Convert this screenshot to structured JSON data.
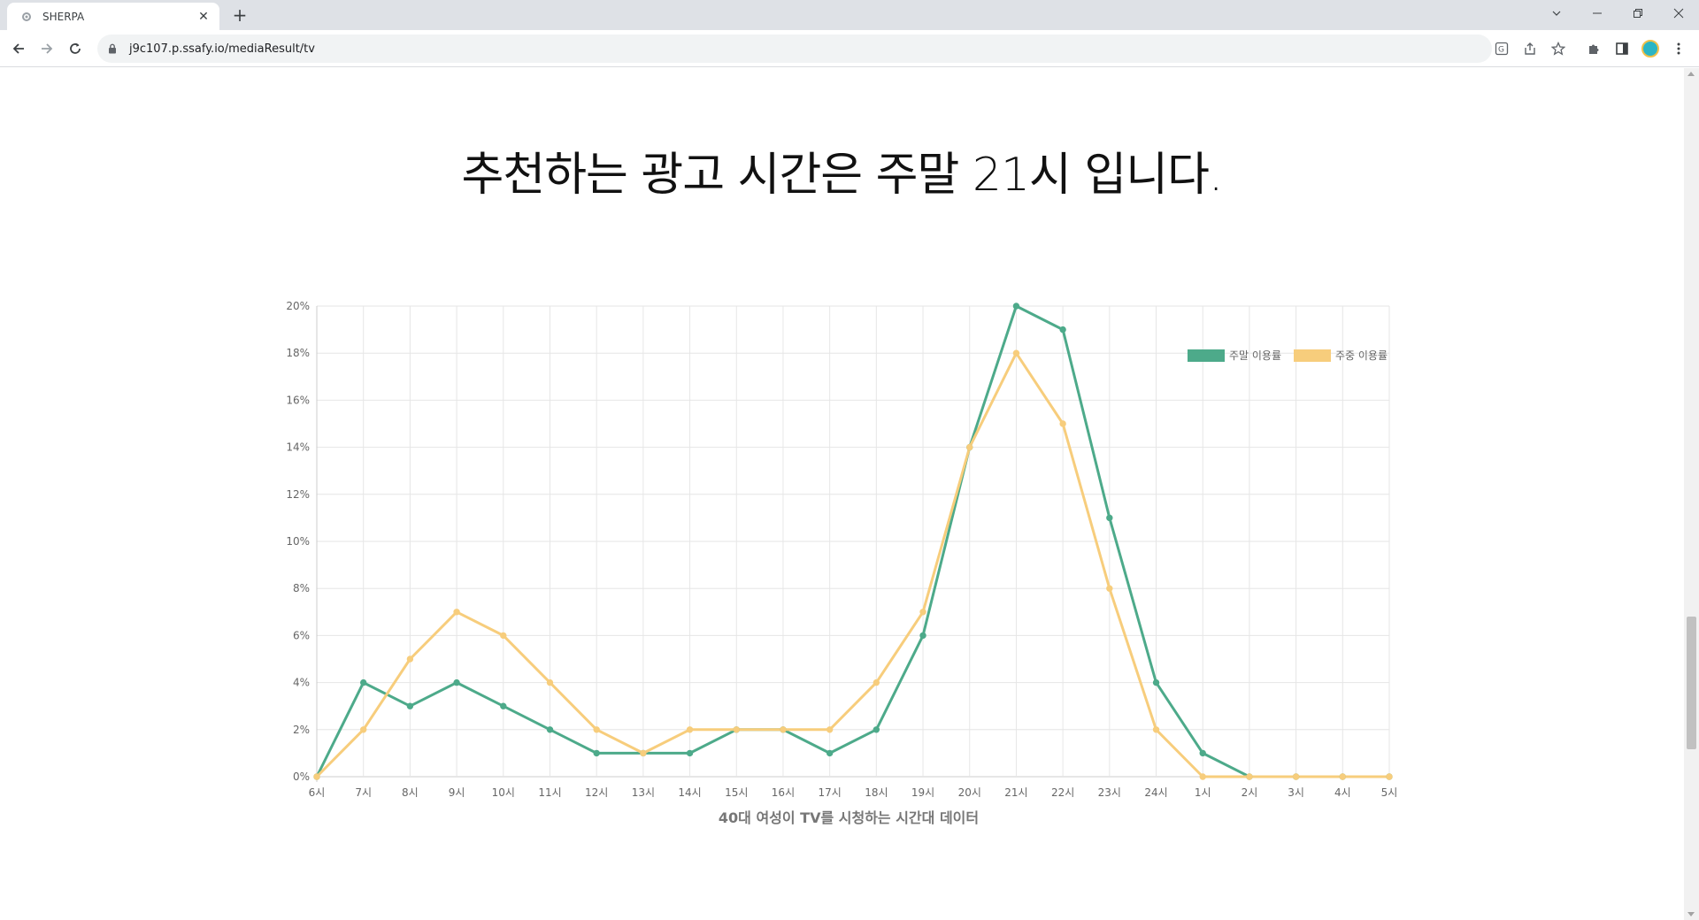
{
  "browser": {
    "tab_title": "SHERPA",
    "tab_close_glyph": "✕",
    "new_tab_glyph": "+",
    "url": "j9c107.p.ssafy.io/mediaResult/tv"
  },
  "page": {
    "headline": "추천하는 광고 시간은 주말 21시 입니다."
  },
  "chart_data": {
    "type": "line",
    "title": "",
    "xlabel": "40대 여성이 TV를 시청하는 시간대 데이터",
    "ylabel": "",
    "categories": [
      "6시",
      "7시",
      "8시",
      "9시",
      "10시",
      "11시",
      "12시",
      "13시",
      "14시",
      "15시",
      "16시",
      "17시",
      "18시",
      "19시",
      "20시",
      "21시",
      "22시",
      "23시",
      "24시",
      "1시",
      "2시",
      "3시",
      "4시",
      "5시"
    ],
    "ylim": [
      0,
      20
    ],
    "y_ticks": [
      "0%",
      "2%",
      "4%",
      "6%",
      "8%",
      "10%",
      "12%",
      "14%",
      "16%",
      "18%",
      "20%"
    ],
    "grid": true,
    "legend_position": "top-right",
    "series": [
      {
        "name": "주말 이용률",
        "color": "#4daa8a",
        "values": [
          0,
          4,
          3,
          4,
          3,
          2,
          1,
          1,
          1,
          2,
          2,
          1,
          2,
          6,
          14,
          20,
          19,
          11,
          4,
          1,
          0,
          0,
          0,
          0
        ]
      },
      {
        "name": "주중 이용률",
        "color": "#f7cd7c",
        "values": [
          0,
          2,
          5,
          7,
          6,
          4,
          2,
          1,
          2,
          2,
          2,
          2,
          4,
          7,
          14,
          18,
          15,
          8,
          2,
          0,
          0,
          0,
          0,
          0
        ]
      }
    ]
  }
}
